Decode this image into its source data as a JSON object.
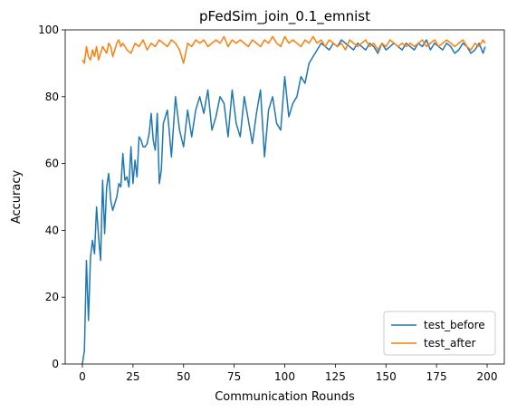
{
  "chart_data": {
    "type": "line",
    "title": "pFedSim_join_0.1_emnist",
    "xlabel": "Communication Rounds",
    "ylabel": "Accuracy",
    "xlim": [
      -8.5,
      208.5
    ],
    "ylim": [
      0,
      100
    ],
    "xticks": [
      0,
      25,
      50,
      75,
      100,
      125,
      150,
      175,
      200
    ],
    "yticks": [
      0,
      20,
      40,
      60,
      80,
      100
    ],
    "grid": false,
    "legend_position": "lower-right",
    "series": [
      {
        "name": "test_before",
        "color": "#1f77b4",
        "x": [
          0,
          1,
          2,
          3,
          4,
          5,
          6,
          7,
          8,
          9,
          10,
          11,
          12,
          13,
          14,
          15,
          16,
          17,
          18,
          19,
          20,
          21,
          22,
          23,
          24,
          25,
          26,
          27,
          28,
          29,
          30,
          31,
          32,
          33,
          34,
          35,
          36,
          37,
          38,
          39,
          40,
          42,
          44,
          46,
          48,
          50,
          52,
          54,
          56,
          58,
          60,
          62,
          64,
          66,
          68,
          70,
          72,
          74,
          76,
          78,
          80,
          82,
          84,
          86,
          88,
          90,
          92,
          94,
          96,
          98,
          100,
          102,
          104,
          106,
          108,
          110,
          112,
          114,
          116,
          118,
          120,
          122,
          124,
          126,
          128,
          130,
          132,
          134,
          136,
          138,
          140,
          142,
          144,
          146,
          148,
          150,
          152,
          154,
          156,
          158,
          160,
          162,
          164,
          166,
          168,
          170,
          172,
          174,
          176,
          178,
          180,
          182,
          184,
          186,
          188,
          190,
          192,
          194,
          196,
          198,
          199
        ],
        "values": [
          0,
          4,
          31,
          13,
          32,
          37,
          33,
          47,
          38,
          31,
          55,
          39,
          53,
          57,
          49,
          46,
          48,
          50,
          54,
          53,
          63,
          55,
          56,
          53,
          65,
          54,
          61,
          56,
          68,
          67,
          65,
          65,
          66,
          69,
          75,
          67,
          64,
          75,
          54,
          58,
          72,
          76,
          62,
          80,
          70,
          65,
          76,
          68,
          76,
          80,
          75,
          82,
          70,
          74,
          80,
          78,
          68,
          82,
          72,
          68,
          80,
          73,
          66,
          75,
          82,
          62,
          76,
          80,
          72,
          70,
          86,
          74,
          78,
          80,
          86,
          84,
          90,
          92,
          94,
          96,
          95,
          94,
          96,
          95,
          97,
          96,
          95,
          94,
          96,
          95,
          94,
          96,
          95,
          93,
          96,
          94,
          95,
          96,
          95,
          94,
          96,
          95,
          94,
          96,
          95,
          97,
          94,
          96,
          95,
          94,
          96,
          95,
          93,
          94,
          96,
          95,
          93,
          94,
          96,
          93,
          95
        ]
      },
      {
        "name": "test_after",
        "color": "#ff7f0e",
        "x": [
          0,
          1,
          2,
          3,
          4,
          5,
          6,
          7,
          8,
          9,
          10,
          11,
          12,
          13,
          14,
          15,
          16,
          17,
          18,
          19,
          20,
          22,
          24,
          26,
          28,
          30,
          32,
          34,
          36,
          38,
          40,
          42,
          44,
          46,
          48,
          50,
          52,
          54,
          56,
          58,
          60,
          62,
          64,
          66,
          68,
          70,
          72,
          74,
          76,
          78,
          80,
          82,
          84,
          86,
          88,
          90,
          92,
          94,
          96,
          98,
          100,
          102,
          104,
          106,
          108,
          110,
          112,
          114,
          116,
          118,
          120,
          122,
          124,
          126,
          128,
          130,
          132,
          134,
          136,
          138,
          140,
          142,
          144,
          146,
          148,
          150,
          152,
          154,
          156,
          158,
          160,
          162,
          164,
          166,
          168,
          170,
          172,
          174,
          176,
          178,
          180,
          182,
          184,
          186,
          188,
          190,
          192,
          194,
          196,
          198,
          199
        ],
        "values": [
          91,
          90,
          95,
          92,
          91,
          94,
          92,
          95,
          91,
          93,
          95,
          94,
          93,
          96,
          95,
          92,
          94,
          96,
          97,
          95,
          96,
          94,
          93,
          96,
          95,
          97,
          94,
          96,
          95,
          97,
          96,
          95,
          97,
          96,
          94,
          90,
          96,
          95,
          97,
          96,
          97,
          95,
          96,
          97,
          96,
          98,
          95,
          97,
          96,
          97,
          96,
          95,
          97,
          96,
          95,
          97,
          96,
          98,
          96,
          95,
          98,
          96,
          97,
          96,
          95,
          97,
          96,
          98,
          96,
          97,
          95,
          97,
          96,
          95,
          96,
          94,
          97,
          96,
          95,
          96,
          97,
          95,
          96,
          94,
          96,
          95,
          97,
          96,
          95,
          96,
          95,
          96,
          95,
          96,
          97,
          95,
          96,
          97,
          95,
          96,
          97,
          96,
          95,
          96,
          97,
          95,
          94,
          96,
          95,
          97,
          96
        ]
      }
    ]
  }
}
